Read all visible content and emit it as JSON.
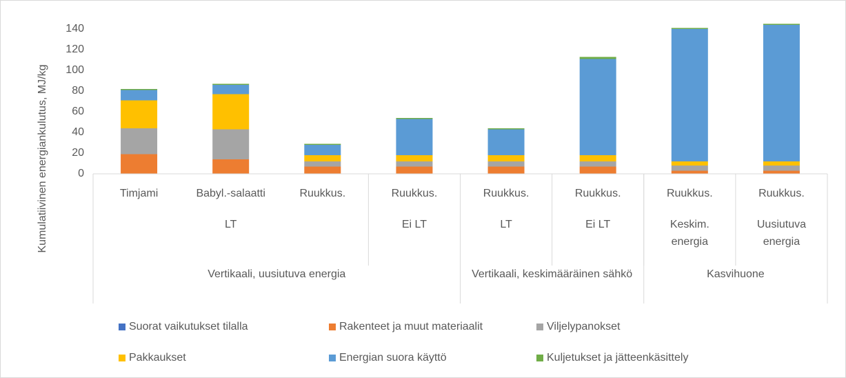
{
  "chart_data": {
    "type": "stacked_bar",
    "y_label": "Kumulatiivinen energiankulutus, MJ/kg",
    "categories": [
      "Timjami",
      "Babyl.-salaatti",
      "Ruukkus.",
      "Ruukkus.",
      "Ruukkus.",
      "Ruukkus.",
      "Ruukkus.",
      "Ruukkus."
    ],
    "subgroups": [
      {
        "label": "LT",
        "count": 3
      },
      {
        "label": "Ei LT",
        "count": 1
      },
      {
        "label": "LT",
        "count": 1
      },
      {
        "label": "Ei LT",
        "count": 1
      },
      {
        "label": "Keskim. energia",
        "count": 1
      },
      {
        "label": "Uusiutuva energia",
        "count": 1
      }
    ],
    "groups": [
      {
        "label": "Vertikaali, uusiutuva energia",
        "count": 4
      },
      {
        "label": "Vertikaali, keskimääräinen sähkö",
        "count": 2
      },
      {
        "label": "Kasvihuone",
        "count": 2
      }
    ],
    "series": [
      {
        "name": "Suorat vaikutukset tilalla",
        "color": "#4472c4",
        "values": [
          0,
          0,
          0,
          0,
          0,
          0,
          0,
          0
        ]
      },
      {
        "name": "Rakenteet ja muut materiaalit",
        "color": "#ed7d31",
        "values": [
          19,
          14,
          7,
          7,
          7,
          7,
          3,
          3
        ]
      },
      {
        "name": "Viljelypanokset",
        "color": "#a5a5a5",
        "values": [
          25,
          29,
          5,
          5,
          5,
          5,
          5,
          5
        ]
      },
      {
        "name": "Pakkaukset",
        "color": "#ffc000",
        "values": [
          27,
          34,
          6,
          6,
          6,
          6,
          4,
          4
        ]
      },
      {
        "name": "Energian suora käyttö",
        "color": "#5b9bd5",
        "values": [
          10,
          9,
          10,
          35,
          25,
          93,
          128,
          132
        ]
      },
      {
        "name": "Kuljetukset ja jätteenkäsittely",
        "color": "#70ad47",
        "values": [
          1,
          1,
          1,
          1,
          1,
          2,
          1,
          1
        ]
      }
    ],
    "ylim": [
      0,
      150
    ],
    "yticks": [
      0,
      20,
      40,
      60,
      80,
      100,
      120,
      140
    ]
  }
}
